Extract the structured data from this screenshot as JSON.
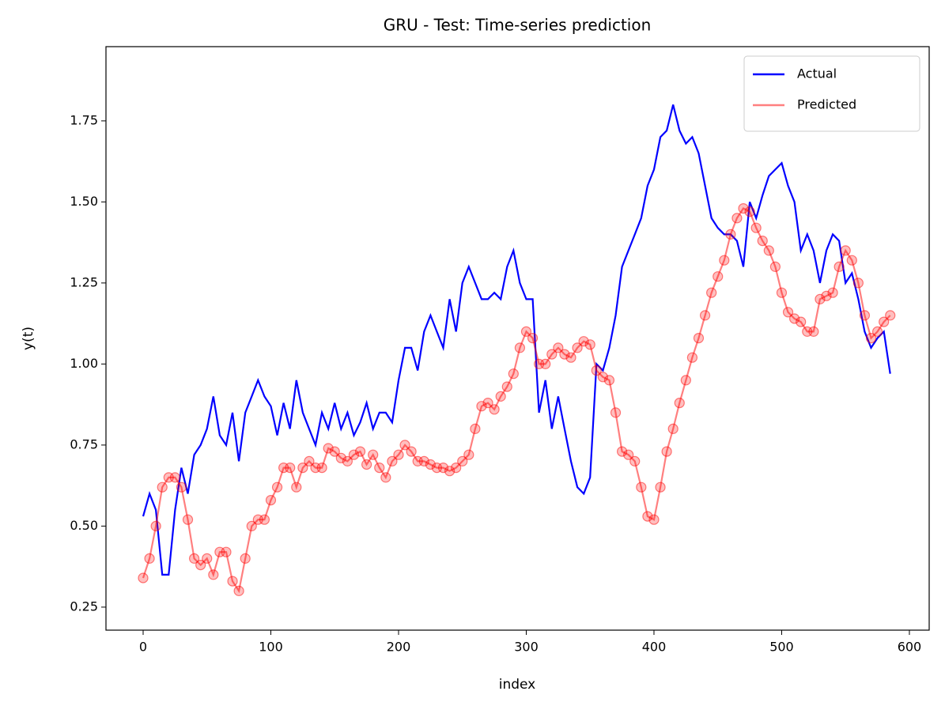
{
  "chart_data": {
    "type": "line",
    "title": "GRU - Test: Time-series prediction",
    "xlabel": "index",
    "ylabel": "y(t)",
    "x": [
      0,
      5,
      10,
      15,
      20,
      25,
      30,
      35,
      40,
      45,
      50,
      55,
      60,
      65,
      70,
      75,
      80,
      85,
      90,
      95,
      100,
      105,
      110,
      115,
      120,
      125,
      130,
      135,
      140,
      145,
      150,
      155,
      160,
      165,
      170,
      175,
      180,
      185,
      190,
      195,
      200,
      205,
      210,
      215,
      220,
      225,
      230,
      235,
      240,
      245,
      250,
      255,
      260,
      265,
      270,
      275,
      280,
      285,
      290,
      295,
      300,
      305,
      310,
      315,
      320,
      325,
      330,
      335,
      340,
      345,
      350,
      355,
      360,
      365,
      370,
      375,
      380,
      385,
      390,
      395,
      400,
      405,
      410,
      415,
      420,
      425,
      430,
      435,
      440,
      445,
      450,
      455,
      460,
      465,
      470,
      475,
      480,
      485,
      490,
      495,
      500,
      505,
      510,
      515,
      520,
      525,
      530,
      535,
      540,
      545,
      550,
      555,
      560,
      565,
      570,
      575,
      580,
      585
    ],
    "series": [
      {
        "name": "Actual",
        "color": "#0000ff",
        "values": [
          0.53,
          0.6,
          0.55,
          0.35,
          0.35,
          0.55,
          0.68,
          0.6,
          0.72,
          0.75,
          0.8,
          0.9,
          0.78,
          0.75,
          0.85,
          0.7,
          0.85,
          0.9,
          0.95,
          0.9,
          0.87,
          0.78,
          0.88,
          0.8,
          0.95,
          0.85,
          0.8,
          0.75,
          0.85,
          0.8,
          0.88,
          0.8,
          0.85,
          0.78,
          0.82,
          0.88,
          0.8,
          0.85,
          0.85,
          0.82,
          0.95,
          1.05,
          1.05,
          0.98,
          1.1,
          1.15,
          1.1,
          1.05,
          1.2,
          1.1,
          1.25,
          1.3,
          1.25,
          1.2,
          1.2,
          1.22,
          1.2,
          1.3,
          1.35,
          1.25,
          1.2,
          1.2,
          0.85,
          0.95,
          0.8,
          0.9,
          0.8,
          0.7,
          0.62,
          0.6,
          0.65,
          1.0,
          0.98,
          1.05,
          1.15,
          1.3,
          1.35,
          1.4,
          1.45,
          1.55,
          1.6,
          1.7,
          1.72,
          1.8,
          1.72,
          1.68,
          1.7,
          1.65,
          1.55,
          1.45,
          1.42,
          1.4,
          1.4,
          1.38,
          1.3,
          1.5,
          1.45,
          1.52,
          1.58,
          1.6,
          1.62,
          1.55,
          1.5,
          1.35,
          1.4,
          1.35,
          1.25,
          1.35,
          1.4,
          1.38,
          1.25,
          1.28,
          1.2,
          1.1,
          1.05,
          1.08,
          1.1,
          0.97
        ]
      },
      {
        "name": "Predicted",
        "color": "#ff0000",
        "alpha": 0.5,
        "marker": "o",
        "values": [
          0.34,
          0.4,
          0.5,
          0.62,
          0.65,
          0.65,
          0.62,
          0.52,
          0.4,
          0.38,
          0.4,
          0.35,
          0.42,
          0.42,
          0.33,
          0.3,
          0.4,
          0.5,
          0.52,
          0.52,
          0.58,
          0.62,
          0.68,
          0.68,
          0.62,
          0.68,
          0.7,
          0.68,
          0.68,
          0.74,
          0.73,
          0.71,
          0.7,
          0.72,
          0.73,
          0.69,
          0.72,
          0.68,
          0.65,
          0.7,
          0.72,
          0.75,
          0.73,
          0.7,
          0.7,
          0.69,
          0.68,
          0.68,
          0.67,
          0.68,
          0.7,
          0.72,
          0.8,
          0.87,
          0.88,
          0.86,
          0.9,
          0.93,
          0.97,
          1.05,
          1.1,
          1.08,
          1.0,
          1.0,
          1.03,
          1.05,
          1.03,
          1.02,
          1.05,
          1.07,
          1.06,
          0.98,
          0.96,
          0.95,
          0.85,
          0.73,
          0.72,
          0.7,
          0.62,
          0.53,
          0.52,
          0.62,
          0.73,
          0.8,
          0.88,
          0.95,
          1.02,
          1.08,
          1.15,
          1.22,
          1.27,
          1.32,
          1.4,
          1.45,
          1.48,
          1.47,
          1.42,
          1.38,
          1.35,
          1.3,
          1.22,
          1.16,
          1.14,
          1.13,
          1.1,
          1.1,
          1.2,
          1.21,
          1.22,
          1.3,
          1.35,
          1.32,
          1.25,
          1.15,
          1.08,
          1.1,
          1.13,
          1.15
        ]
      }
    ],
    "xlim": [
      -29.1,
      615.5
    ],
    "ylim": [
      0.179,
      1.979
    ],
    "xticks": [
      0,
      100,
      200,
      300,
      400,
      500,
      600
    ],
    "yticks": [
      0.25,
      {
        "value": 0.5,
        "label": "0.50"
      },
      0.75,
      {
        "value": 1.0,
        "label": "1.00"
      },
      1.25,
      {
        "value": 1.5,
        "label": "1.50"
      },
      1.75
    ],
    "legend": "upper right"
  }
}
